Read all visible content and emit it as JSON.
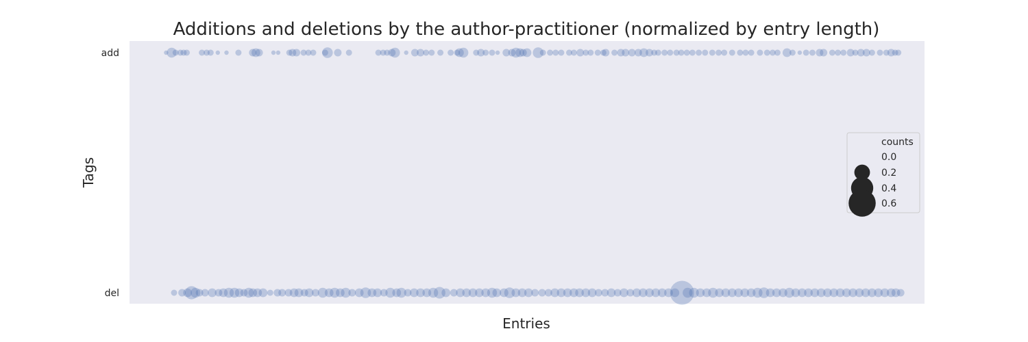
{
  "chart_data": {
    "type": "scatter",
    "title": "Additions and deletions by the author-practitioner (normalized by entry length)",
    "xlabel": "Entries",
    "ylabel": "Tags",
    "categories": [
      "add",
      "del"
    ],
    "x_ticks_visible": false,
    "xlim": [
      0,
      1000
    ],
    "grid": false,
    "colors": {
      "background": "#eaeaf2",
      "point": "#4c72b0",
      "legend_marker": "#262626"
    },
    "legend": {
      "title": "counts",
      "placement": "center-right",
      "entries": [
        "0.0",
        "0.2",
        "0.4",
        "0.6"
      ],
      "sizes": [
        0.0,
        0.2,
        0.4,
        0.6
      ]
    },
    "series": [
      {
        "category": "add",
        "points": [
          {
            "x": 46,
            "c": 0.01
          },
          {
            "x": 53,
            "c": 0.05
          },
          {
            "x": 58,
            "c": 0.02
          },
          {
            "x": 64,
            "c": 0.02
          },
          {
            "x": 68,
            "c": 0.02
          },
          {
            "x": 72,
            "c": 0.02
          },
          {
            "x": 91,
            "c": 0.02
          },
          {
            "x": 97,
            "c": 0.02
          },
          {
            "x": 102,
            "c": 0.02
          },
          {
            "x": 111,
            "c": 0.01
          },
          {
            "x": 122,
            "c": 0.01
          },
          {
            "x": 137,
            "c": 0.02
          },
          {
            "x": 155,
            "c": 0.03
          },
          {
            "x": 159,
            "c": 0.04
          },
          {
            "x": 163,
            "c": 0.03
          },
          {
            "x": 181,
            "c": 0.01
          },
          {
            "x": 187,
            "c": 0.01
          },
          {
            "x": 201,
            "c": 0.02
          },
          {
            "x": 205,
            "c": 0.03
          },
          {
            "x": 210,
            "c": 0.03
          },
          {
            "x": 219,
            "c": 0.02
          },
          {
            "x": 225,
            "c": 0.02
          },
          {
            "x": 231,
            "c": 0.02
          },
          {
            "x": 246,
            "c": 0.02
          },
          {
            "x": 249,
            "c": 0.06
          },
          {
            "x": 262,
            "c": 0.03
          },
          {
            "x": 276,
            "c": 0.02
          },
          {
            "x": 313,
            "c": 0.02
          },
          {
            "x": 319,
            "c": 0.02
          },
          {
            "x": 324,
            "c": 0.02
          },
          {
            "x": 330,
            "c": 0.03
          },
          {
            "x": 334,
            "c": 0.05
          },
          {
            "x": 348,
            "c": 0.01
          },
          {
            "x": 359,
            "c": 0.03
          },
          {
            "x": 366,
            "c": 0.03
          },
          {
            "x": 373,
            "c": 0.02
          },
          {
            "x": 380,
            "c": 0.02
          },
          {
            "x": 391,
            "c": 0.02
          },
          {
            "x": 404,
            "c": 0.02
          },
          {
            "x": 412,
            "c": 0.02
          },
          {
            "x": 415,
            "c": 0.04
          },
          {
            "x": 420,
            "c": 0.05
          },
          {
            "x": 436,
            "c": 0.02
          },
          {
            "x": 442,
            "c": 0.03
          },
          {
            "x": 448,
            "c": 0.02
          },
          {
            "x": 456,
            "c": 0.02
          },
          {
            "x": 463,
            "c": 0.01
          },
          {
            "x": 474,
            "c": 0.03
          },
          {
            "x": 481,
            "c": 0.03
          },
          {
            "x": 486,
            "c": 0.05
          },
          {
            "x": 491,
            "c": 0.04
          },
          {
            "x": 495,
            "c": 0.03
          },
          {
            "x": 500,
            "c": 0.04
          },
          {
            "x": 514,
            "c": 0.06
          },
          {
            "x": 520,
            "c": 0.02
          },
          {
            "x": 529,
            "c": 0.02
          },
          {
            "x": 536,
            "c": 0.02
          },
          {
            "x": 543,
            "c": 0.02
          },
          {
            "x": 553,
            "c": 0.02
          },
          {
            "x": 559,
            "c": 0.02
          },
          {
            "x": 567,
            "c": 0.03
          },
          {
            "x": 574,
            "c": 0.02
          },
          {
            "x": 580,
            "c": 0.02
          },
          {
            "x": 589,
            "c": 0.02
          },
          {
            "x": 596,
            "c": 0.02
          },
          {
            "x": 599,
            "c": 0.03
          },
          {
            "x": 610,
            "c": 0.02
          },
          {
            "x": 618,
            "c": 0.03
          },
          {
            "x": 624,
            "c": 0.03
          },
          {
            "x": 632,
            "c": 0.03
          },
          {
            "x": 640,
            "c": 0.03
          },
          {
            "x": 647,
            "c": 0.04
          },
          {
            "x": 654,
            "c": 0.03
          },
          {
            "x": 660,
            "c": 0.02
          },
          {
            "x": 665,
            "c": 0.02
          },
          {
            "x": 673,
            "c": 0.02
          },
          {
            "x": 680,
            "c": 0.02
          },
          {
            "x": 688,
            "c": 0.02
          },
          {
            "x": 694,
            "c": 0.02
          },
          {
            "x": 701,
            "c": 0.02
          },
          {
            "x": 708,
            "c": 0.02
          },
          {
            "x": 716,
            "c": 0.02
          },
          {
            "x": 724,
            "c": 0.02
          },
          {
            "x": 733,
            "c": 0.02
          },
          {
            "x": 741,
            "c": 0.02
          },
          {
            "x": 748,
            "c": 0.02
          },
          {
            "x": 758,
            "c": 0.02
          },
          {
            "x": 768,
            "c": 0.02
          },
          {
            "x": 775,
            "c": 0.02
          },
          {
            "x": 782,
            "c": 0.02
          },
          {
            "x": 793,
            "c": 0.02
          },
          {
            "x": 802,
            "c": 0.02
          },
          {
            "x": 809,
            "c": 0.02
          },
          {
            "x": 815,
            "c": 0.02
          },
          {
            "x": 827,
            "c": 0.04
          },
          {
            "x": 834,
            "c": 0.02
          },
          {
            "x": 843,
            "c": 0.01
          },
          {
            "x": 851,
            "c": 0.02
          },
          {
            "x": 859,
            "c": 0.02
          },
          {
            "x": 868,
            "c": 0.03
          },
          {
            "x": 873,
            "c": 0.03
          },
          {
            "x": 884,
            "c": 0.02
          },
          {
            "x": 891,
            "c": 0.02
          },
          {
            "x": 898,
            "c": 0.02
          },
          {
            "x": 907,
            "c": 0.03
          },
          {
            "x": 913,
            "c": 0.02
          },
          {
            "x": 920,
            "c": 0.03
          },
          {
            "x": 927,
            "c": 0.03
          },
          {
            "x": 934,
            "c": 0.02
          },
          {
            "x": 944,
            "c": 0.02
          },
          {
            "x": 952,
            "c": 0.02
          },
          {
            "x": 958,
            "c": 0.03
          },
          {
            "x": 963,
            "c": 0.02
          },
          {
            "x": 967,
            "c": 0.02
          }
        ]
      },
      {
        "category": "del",
        "points": [
          {
            "x": 56,
            "c": 0.02
          },
          {
            "x": 66,
            "c": 0.03
          },
          {
            "x": 73,
            "c": 0.04
          },
          {
            "x": 78,
            "c": 0.09
          },
          {
            "x": 83,
            "c": 0.05
          },
          {
            "x": 88,
            "c": 0.03
          },
          {
            "x": 95,
            "c": 0.03
          },
          {
            "x": 104,
            "c": 0.04
          },
          {
            "x": 112,
            "c": 0.03
          },
          {
            "x": 118,
            "c": 0.04
          },
          {
            "x": 125,
            "c": 0.05
          },
          {
            "x": 132,
            "c": 0.05
          },
          {
            "x": 138,
            "c": 0.04
          },
          {
            "x": 144,
            "c": 0.03
          },
          {
            "x": 150,
            "c": 0.05
          },
          {
            "x": 155,
            "c": 0.04
          },
          {
            "x": 161,
            "c": 0.04
          },
          {
            "x": 168,
            "c": 0.04
          },
          {
            "x": 177,
            "c": 0.02
          },
          {
            "x": 186,
            "c": 0.03
          },
          {
            "x": 192,
            "c": 0.03
          },
          {
            "x": 200,
            "c": 0.03
          },
          {
            "x": 207,
            "c": 0.04
          },
          {
            "x": 213,
            "c": 0.04
          },
          {
            "x": 220,
            "c": 0.03
          },
          {
            "x": 226,
            "c": 0.04
          },
          {
            "x": 234,
            "c": 0.03
          },
          {
            "x": 243,
            "c": 0.05
          },
          {
            "x": 251,
            "c": 0.04
          },
          {
            "x": 258,
            "c": 0.05
          },
          {
            "x": 265,
            "c": 0.04
          },
          {
            "x": 272,
            "c": 0.05
          },
          {
            "x": 280,
            "c": 0.03
          },
          {
            "x": 289,
            "c": 0.04
          },
          {
            "x": 297,
            "c": 0.06
          },
          {
            "x": 305,
            "c": 0.04
          },
          {
            "x": 312,
            "c": 0.04
          },
          {
            "x": 320,
            "c": 0.03
          },
          {
            "x": 328,
            "c": 0.05
          },
          {
            "x": 336,
            "c": 0.04
          },
          {
            "x": 342,
            "c": 0.05
          },
          {
            "x": 350,
            "c": 0.03
          },
          {
            "x": 358,
            "c": 0.04
          },
          {
            "x": 366,
            "c": 0.04
          },
          {
            "x": 374,
            "c": 0.04
          },
          {
            "x": 382,
            "c": 0.05
          },
          {
            "x": 390,
            "c": 0.07
          },
          {
            "x": 398,
            "c": 0.04
          },
          {
            "x": 408,
            "c": 0.03
          },
          {
            "x": 416,
            "c": 0.04
          },
          {
            "x": 424,
            "c": 0.04
          },
          {
            "x": 432,
            "c": 0.04
          },
          {
            "x": 440,
            "c": 0.04
          },
          {
            "x": 448,
            "c": 0.04
          },
          {
            "x": 456,
            "c": 0.05
          },
          {
            "x": 462,
            "c": 0.04
          },
          {
            "x": 471,
            "c": 0.04
          },
          {
            "x": 478,
            "c": 0.06
          },
          {
            "x": 486,
            "c": 0.04
          },
          {
            "x": 494,
            "c": 0.04
          },
          {
            "x": 502,
            "c": 0.04
          },
          {
            "x": 510,
            "c": 0.03
          },
          {
            "x": 519,
            "c": 0.03
          },
          {
            "x": 527,
            "c": 0.03
          },
          {
            "x": 535,
            "c": 0.04
          },
          {
            "x": 543,
            "c": 0.04
          },
          {
            "x": 551,
            "c": 0.04
          },
          {
            "x": 559,
            "c": 0.04
          },
          {
            "x": 566,
            "c": 0.04
          },
          {
            "x": 574,
            "c": 0.04
          },
          {
            "x": 582,
            "c": 0.04
          },
          {
            "x": 590,
            "c": 0.03
          },
          {
            "x": 598,
            "c": 0.03
          },
          {
            "x": 606,
            "c": 0.04
          },
          {
            "x": 614,
            "c": 0.03
          },
          {
            "x": 622,
            "c": 0.04
          },
          {
            "x": 630,
            "c": 0.03
          },
          {
            "x": 638,
            "c": 0.04
          },
          {
            "x": 646,
            "c": 0.04
          },
          {
            "x": 654,
            "c": 0.04
          },
          {
            "x": 662,
            "c": 0.04
          },
          {
            "x": 670,
            "c": 0.04
          },
          {
            "x": 678,
            "c": 0.04
          },
          {
            "x": 686,
            "c": 0.04
          },
          {
            "x": 695,
            "c": 0.3
          },
          {
            "x": 702,
            "c": 0.05
          },
          {
            "x": 710,
            "c": 0.05
          },
          {
            "x": 718,
            "c": 0.04
          },
          {
            "x": 726,
            "c": 0.04
          },
          {
            "x": 734,
            "c": 0.05
          },
          {
            "x": 742,
            "c": 0.04
          },
          {
            "x": 750,
            "c": 0.04
          },
          {
            "x": 758,
            "c": 0.04
          },
          {
            "x": 766,
            "c": 0.04
          },
          {
            "x": 774,
            "c": 0.04
          },
          {
            "x": 782,
            "c": 0.04
          },
          {
            "x": 790,
            "c": 0.05
          },
          {
            "x": 798,
            "c": 0.06
          },
          {
            "x": 806,
            "c": 0.04
          },
          {
            "x": 814,
            "c": 0.04
          },
          {
            "x": 822,
            "c": 0.04
          },
          {
            "x": 830,
            "c": 0.05
          },
          {
            "x": 838,
            "c": 0.04
          },
          {
            "x": 846,
            "c": 0.04
          },
          {
            "x": 854,
            "c": 0.04
          },
          {
            "x": 862,
            "c": 0.04
          },
          {
            "x": 870,
            "c": 0.04
          },
          {
            "x": 878,
            "c": 0.04
          },
          {
            "x": 886,
            "c": 0.04
          },
          {
            "x": 894,
            "c": 0.04
          },
          {
            "x": 902,
            "c": 0.04
          },
          {
            "x": 910,
            "c": 0.04
          },
          {
            "x": 918,
            "c": 0.04
          },
          {
            "x": 926,
            "c": 0.04
          },
          {
            "x": 934,
            "c": 0.04
          },
          {
            "x": 942,
            "c": 0.04
          },
          {
            "x": 950,
            "c": 0.04
          },
          {
            "x": 958,
            "c": 0.04
          },
          {
            "x": 964,
            "c": 0.04
          },
          {
            "x": 970,
            "c": 0.03
          }
        ]
      }
    ]
  }
}
